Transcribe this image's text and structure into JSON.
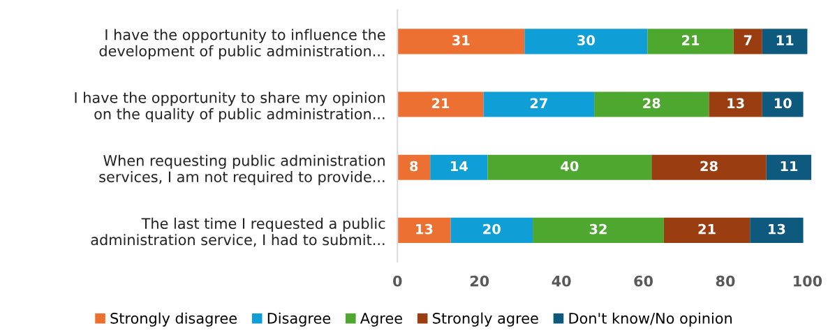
{
  "chart_data": {
    "type": "bar",
    "orientation": "horizontal",
    "stacked": true,
    "data_labels": true,
    "legend": "bottom",
    "grid": false,
    "categories": [
      "I have the opportunity to influence the\ndevelopment of public administration...",
      "I have the opportunity to share my opinion\non the quality of public administration...",
      "When requesting public administration\nservices, I am not required to provide...",
      "The last time I requested a public\nadministration service, I had to submit..."
    ],
    "series": [
      {
        "name": "Strongly disagree",
        "color": "#ed7033",
        "values": [
          31,
          21,
          8,
          13
        ]
      },
      {
        "name": "Disagree",
        "color": "#0f9ed5",
        "values": [
          30,
          27,
          14,
          20
        ]
      },
      {
        "name": "Agree",
        "color": "#4ea72e",
        "values": [
          21,
          28,
          40,
          32
        ]
      },
      {
        "name": "Strongly agree",
        "color": "#9a3e12",
        "values": [
          7,
          13,
          28,
          21
        ]
      },
      {
        "name": "Don't know/No opinion",
        "color": "#0e5a7e",
        "values": [
          11,
          10,
          11,
          13
        ]
      }
    ],
    "xlim": [
      0,
      101
    ],
    "xticks": [
      0,
      20,
      40,
      60,
      80,
      100
    ]
  }
}
